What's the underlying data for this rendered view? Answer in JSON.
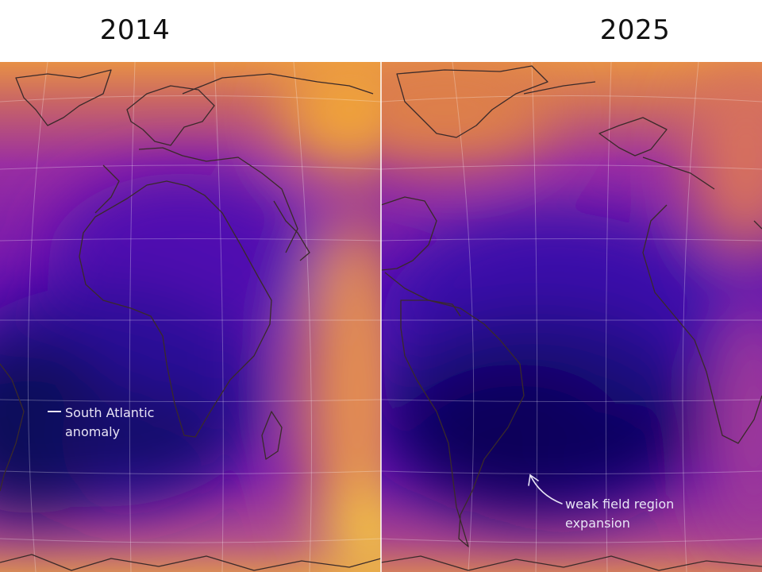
{
  "panels": [
    {
      "year": "2014"
    },
    {
      "year": "2025"
    }
  ],
  "annotations": {
    "south_atlantic": "South Atlantic\nanomaly",
    "weak_field": "weak field region\nexpansion"
  },
  "colors": {
    "weak_field": "#12085e",
    "mid_field": "#7a12b8",
    "strong_field": "#f2a437",
    "coastline": "#3a2a2a",
    "graticule": "#ffffff",
    "annotation_text": "#e8e4f5"
  }
}
